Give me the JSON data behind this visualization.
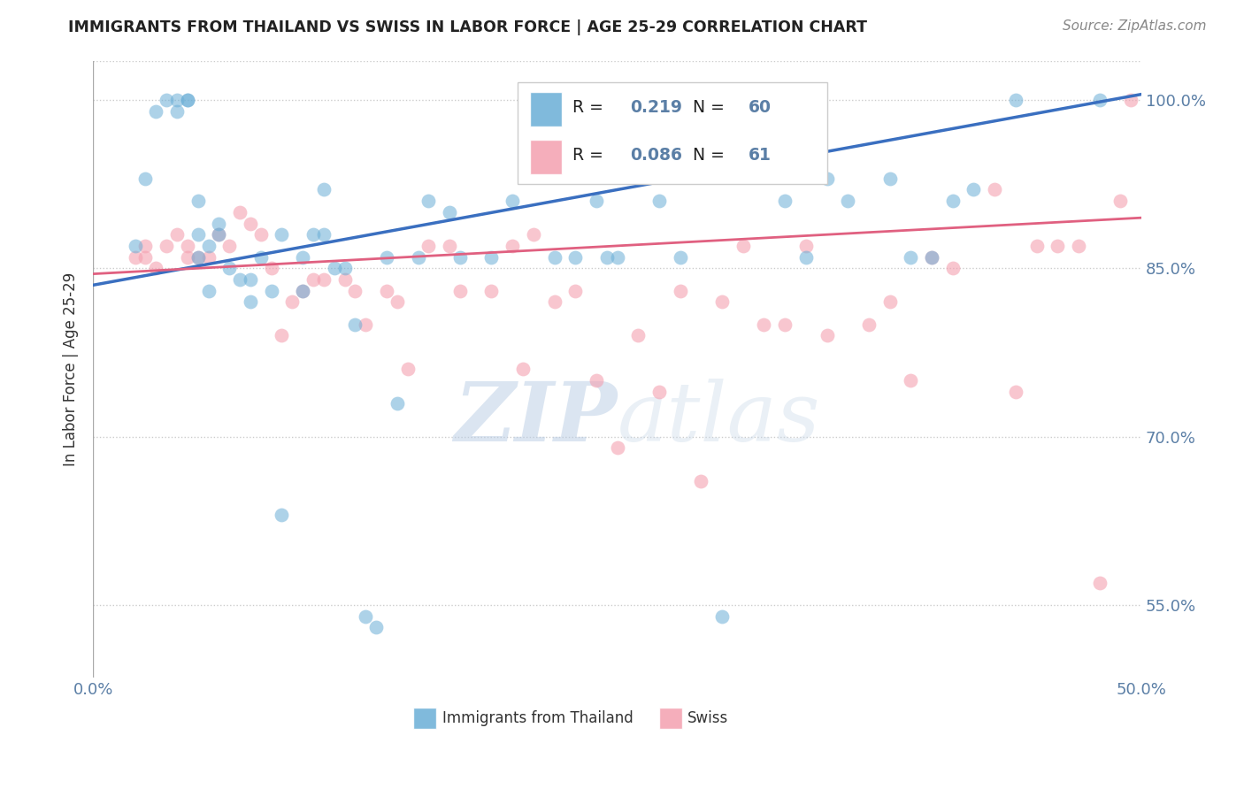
{
  "title": "IMMIGRANTS FROM THAILAND VS SWISS IN LABOR FORCE | AGE 25-29 CORRELATION CHART",
  "source": "Source: ZipAtlas.com",
  "ylabel": "In Labor Force | Age 25-29",
  "xlim": [
    0.0,
    0.5
  ],
  "ylim": [
    0.485,
    1.035
  ],
  "yticks": [
    0.55,
    0.7,
    0.85,
    1.0
  ],
  "ytick_labels": [
    "55.0%",
    "70.0%",
    "85.0%",
    "100.0%"
  ],
  "xticks": [
    0.0,
    0.1,
    0.2,
    0.3,
    0.4,
    0.5
  ],
  "xtick_labels": [
    "0.0%",
    "",
    "",
    "",
    "",
    "50.0%"
  ],
  "legend_labels": [
    "Immigrants from Thailand",
    "Swiss"
  ],
  "blue_color": "#6aaed6",
  "pink_color": "#f4a0b0",
  "blue_R": 0.219,
  "blue_N": 60,
  "pink_R": 0.086,
  "pink_N": 61,
  "blue_scatter_x": [
    0.02,
    0.025,
    0.03,
    0.035,
    0.04,
    0.04,
    0.045,
    0.045,
    0.05,
    0.05,
    0.05,
    0.055,
    0.055,
    0.06,
    0.06,
    0.065,
    0.07,
    0.075,
    0.075,
    0.08,
    0.085,
    0.09,
    0.09,
    0.1,
    0.1,
    0.105,
    0.11,
    0.11,
    0.115,
    0.12,
    0.125,
    0.13,
    0.135,
    0.14,
    0.145,
    0.155,
    0.16,
    0.17,
    0.175,
    0.19,
    0.2,
    0.22,
    0.23,
    0.24,
    0.245,
    0.25,
    0.27,
    0.28,
    0.3,
    0.33,
    0.34,
    0.35,
    0.36,
    0.38,
    0.39,
    0.4,
    0.41,
    0.42,
    0.44,
    0.48
  ],
  "blue_scatter_y": [
    0.87,
    0.93,
    0.99,
    1.0,
    0.99,
    1.0,
    1.0,
    1.0,
    0.91,
    0.88,
    0.86,
    0.87,
    0.83,
    0.89,
    0.88,
    0.85,
    0.84,
    0.84,
    0.82,
    0.86,
    0.83,
    0.88,
    0.63,
    0.86,
    0.83,
    0.88,
    0.92,
    0.88,
    0.85,
    0.85,
    0.8,
    0.54,
    0.53,
    0.86,
    0.73,
    0.86,
    0.91,
    0.9,
    0.86,
    0.86,
    0.91,
    0.86,
    0.86,
    0.91,
    0.86,
    0.86,
    0.91,
    0.86,
    0.54,
    0.91,
    0.86,
    0.93,
    0.91,
    0.93,
    0.86,
    0.86,
    0.91,
    0.92,
    1.0,
    1.0
  ],
  "pink_scatter_x": [
    0.02,
    0.025,
    0.025,
    0.03,
    0.035,
    0.04,
    0.045,
    0.045,
    0.05,
    0.055,
    0.06,
    0.065,
    0.07,
    0.075,
    0.08,
    0.085,
    0.09,
    0.095,
    0.1,
    0.105,
    0.11,
    0.12,
    0.125,
    0.13,
    0.14,
    0.145,
    0.15,
    0.16,
    0.17,
    0.175,
    0.19,
    0.2,
    0.205,
    0.21,
    0.22,
    0.23,
    0.24,
    0.25,
    0.26,
    0.27,
    0.28,
    0.29,
    0.3,
    0.31,
    0.32,
    0.33,
    0.34,
    0.35,
    0.37,
    0.38,
    0.39,
    0.4,
    0.41,
    0.43,
    0.44,
    0.45,
    0.46,
    0.47,
    0.48,
    0.49,
    0.495
  ],
  "pink_scatter_y": [
    0.86,
    0.87,
    0.86,
    0.85,
    0.87,
    0.88,
    0.87,
    0.86,
    0.86,
    0.86,
    0.88,
    0.87,
    0.9,
    0.89,
    0.88,
    0.85,
    0.79,
    0.82,
    0.83,
    0.84,
    0.84,
    0.84,
    0.83,
    0.8,
    0.83,
    0.82,
    0.76,
    0.87,
    0.87,
    0.83,
    0.83,
    0.87,
    0.76,
    0.88,
    0.82,
    0.83,
    0.75,
    0.69,
    0.79,
    0.74,
    0.83,
    0.66,
    0.82,
    0.87,
    0.8,
    0.8,
    0.87,
    0.79,
    0.8,
    0.82,
    0.75,
    0.86,
    0.85,
    0.92,
    0.74,
    0.87,
    0.87,
    0.87,
    0.57,
    0.91,
    1.0
  ],
  "blue_line_x0": 0.0,
  "blue_line_y0": 0.835,
  "blue_line_x1": 0.5,
  "blue_line_y1": 1.005,
  "pink_line_x0": 0.0,
  "pink_line_y0": 0.845,
  "pink_line_x1": 0.5,
  "pink_line_y1": 0.895,
  "watermark": "ZIPatlas",
  "tick_color": "#5b7fa6",
  "background_color": "#ffffff"
}
